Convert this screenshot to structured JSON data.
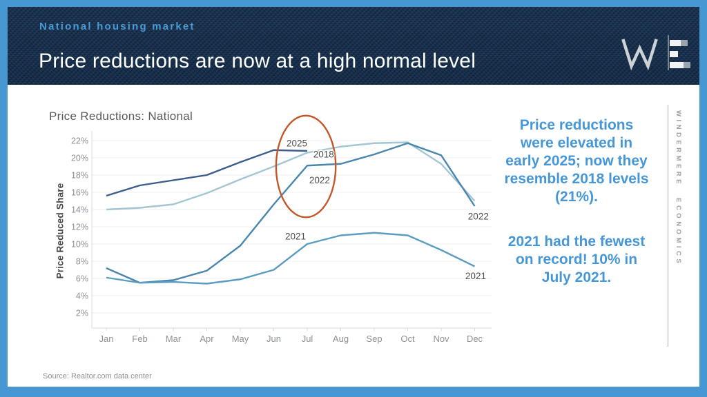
{
  "slide": {
    "eyebrow": "National housing market",
    "title": "Price reductions are now at a high normal level",
    "source": "Source: Realtor.com data center",
    "vertical_brand": "WINDERMERE ECONOMICS",
    "colors": {
      "frame_blue": "#4797d3",
      "header_navy": "#16304e",
      "eyebrow_blue": "#4a9ad6",
      "insight_blue": "#4697d7"
    },
    "logo": {
      "w_icon": "windermere-w-icon",
      "bars_icon": "bar-chart-icon"
    }
  },
  "insight": {
    "para1": "Price reductions\nwere elevated in\nearly 2025; now they\nresemble 2018 levels\n(21%).",
    "para2": "2021 had the fewest\non record! 10% in\nJuly 2021."
  },
  "chart_data": {
    "type": "line",
    "title": "Price Reductions: National",
    "xlabel": "",
    "ylabel": "Price Reduced Share",
    "categories": [
      "Jan",
      "Feb",
      "Mar",
      "Apr",
      "May",
      "Jun",
      "Jul",
      "Aug",
      "Sep",
      "Oct",
      "Nov",
      "Dec"
    ],
    "y_ticks": [
      2,
      4,
      6,
      8,
      10,
      12,
      14,
      16,
      18,
      20,
      22
    ],
    "y_tick_suffix": "%",
    "ylim": [
      0.2,
      23
    ],
    "grid": "horizontal",
    "legend": "inline-labels",
    "series": [
      {
        "name": "2025",
        "color": "#3b5c8c",
        "values": [
          15.6,
          16.8,
          17.4,
          18.0,
          19.5,
          20.9,
          20.8
        ]
      },
      {
        "name": "2018",
        "color": "#a3c6d3",
        "values": [
          14.0,
          14.2,
          14.6,
          15.9,
          17.5,
          19.0,
          20.6,
          21.3,
          21.7,
          21.8,
          19.3,
          15.0
        ]
      },
      {
        "name": "2022",
        "color": "#4986ae",
        "values": [
          7.2,
          5.5,
          5.8,
          6.9,
          9.8,
          14.6,
          19.1,
          19.3,
          20.4,
          21.7,
          20.3,
          14.4
        ]
      },
      {
        "name": "2021",
        "color": "#5b9cc0",
        "values": [
          6.1,
          5.5,
          5.6,
          5.4,
          5.9,
          7.0,
          10.0,
          11.0,
          11.3,
          11.0,
          9.3,
          7.4
        ]
      }
    ],
    "annotations": [
      {
        "text": "2025",
        "month_x": 5.69,
        "value_y": 21.7
      },
      {
        "text": "2018",
        "month_x": 6.49,
        "value_y": 20.4
      },
      {
        "text": "2022",
        "month_x": 6.37,
        "value_y": 17.4
      },
      {
        "text": "2021",
        "month_x": 5.65,
        "value_y": 10.9
      },
      {
        "text": "2022",
        "month_x": 11.11,
        "value_y": 13.2
      },
      {
        "text": "2021",
        "month_x": 11.03,
        "value_y": 6.3
      }
    ],
    "highlight_ellipse": {
      "center_month_x": 5.96,
      "center_value_y": 19.0,
      "radius_months": 0.89,
      "radius_values": 5.9,
      "color": "#c2572a"
    }
  }
}
